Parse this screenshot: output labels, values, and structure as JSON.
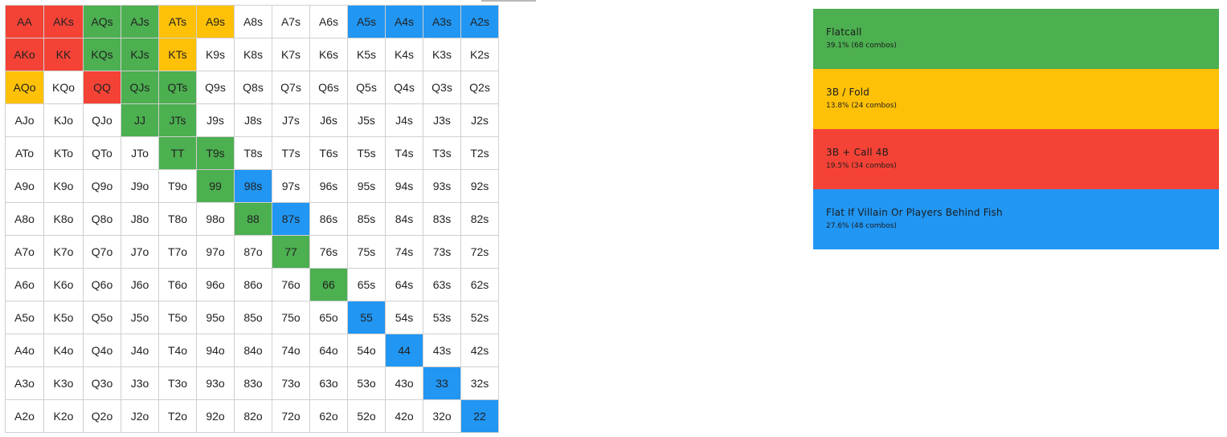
{
  "colors": {
    "flatcall": "#4caf50",
    "fold3b": "#ffc107",
    "call4b": "#f44336",
    "flatfish": "#2196f3",
    "none": "#ffffff"
  },
  "grid": {
    "rows": [
      [
        [
          "AA",
          "call4b"
        ],
        [
          "AKs",
          "call4b"
        ],
        [
          "AQs",
          "flatcall"
        ],
        [
          "AJs",
          "flatcall"
        ],
        [
          "ATs",
          "fold3b"
        ],
        [
          "A9s",
          "fold3b"
        ],
        [
          "A8s",
          "none"
        ],
        [
          "A7s",
          "none"
        ],
        [
          "A6s",
          "none"
        ],
        [
          "A5s",
          "flatfish"
        ],
        [
          "A4s",
          "flatfish"
        ],
        [
          "A3s",
          "flatfish"
        ],
        [
          "A2s",
          "flatfish"
        ]
      ],
      [
        [
          "AKo",
          "call4b"
        ],
        [
          "KK",
          "call4b"
        ],
        [
          "KQs",
          "flatcall"
        ],
        [
          "KJs",
          "flatcall"
        ],
        [
          "KTs",
          "fold3b"
        ],
        [
          "K9s",
          "none"
        ],
        [
          "K8s",
          "none"
        ],
        [
          "K7s",
          "none"
        ],
        [
          "K6s",
          "none"
        ],
        [
          "K5s",
          "none"
        ],
        [
          "K4s",
          "none"
        ],
        [
          "K3s",
          "none"
        ],
        [
          "K2s",
          "none"
        ]
      ],
      [
        [
          "AQo",
          "fold3b"
        ],
        [
          "KQo",
          "none"
        ],
        [
          "QQ",
          "call4b"
        ],
        [
          "QJs",
          "flatcall"
        ],
        [
          "QTs",
          "flatcall"
        ],
        [
          "Q9s",
          "none"
        ],
        [
          "Q8s",
          "none"
        ],
        [
          "Q7s",
          "none"
        ],
        [
          "Q6s",
          "none"
        ],
        [
          "Q5s",
          "none"
        ],
        [
          "Q4s",
          "none"
        ],
        [
          "Q3s",
          "none"
        ],
        [
          "Q2s",
          "none"
        ]
      ],
      [
        [
          "AJo",
          "none"
        ],
        [
          "KJo",
          "none"
        ],
        [
          "QJo",
          "none"
        ],
        [
          "JJ",
          "flatcall"
        ],
        [
          "JTs",
          "flatcall"
        ],
        [
          "J9s",
          "none"
        ],
        [
          "J8s",
          "none"
        ],
        [
          "J7s",
          "none"
        ],
        [
          "J6s",
          "none"
        ],
        [
          "J5s",
          "none"
        ],
        [
          "J4s",
          "none"
        ],
        [
          "J3s",
          "none"
        ],
        [
          "J2s",
          "none"
        ]
      ],
      [
        [
          "ATo",
          "none"
        ],
        [
          "KTo",
          "none"
        ],
        [
          "QTo",
          "none"
        ],
        [
          "JTo",
          "none"
        ],
        [
          "TT",
          "flatcall"
        ],
        [
          "T9s",
          "flatcall"
        ],
        [
          "T8s",
          "none"
        ],
        [
          "T7s",
          "none"
        ],
        [
          "T6s",
          "none"
        ],
        [
          "T5s",
          "none"
        ],
        [
          "T4s",
          "none"
        ],
        [
          "T3s",
          "none"
        ],
        [
          "T2s",
          "none"
        ]
      ],
      [
        [
          "A9o",
          "none"
        ],
        [
          "K9o",
          "none"
        ],
        [
          "Q9o",
          "none"
        ],
        [
          "J9o",
          "none"
        ],
        [
          "T9o",
          "none"
        ],
        [
          "99",
          "flatcall"
        ],
        [
          "98s",
          "flatfish"
        ],
        [
          "97s",
          "none"
        ],
        [
          "96s",
          "none"
        ],
        [
          "95s",
          "none"
        ],
        [
          "94s",
          "none"
        ],
        [
          "93s",
          "none"
        ],
        [
          "92s",
          "none"
        ]
      ],
      [
        [
          "A8o",
          "none"
        ],
        [
          "K8o",
          "none"
        ],
        [
          "Q8o",
          "none"
        ],
        [
          "J8o",
          "none"
        ],
        [
          "T8o",
          "none"
        ],
        [
          "98o",
          "none"
        ],
        [
          "88",
          "flatcall"
        ],
        [
          "87s",
          "flatfish"
        ],
        [
          "86s",
          "none"
        ],
        [
          "85s",
          "none"
        ],
        [
          "84s",
          "none"
        ],
        [
          "83s",
          "none"
        ],
        [
          "82s",
          "none"
        ]
      ],
      [
        [
          "A7o",
          "none"
        ],
        [
          "K7o",
          "none"
        ],
        [
          "Q7o",
          "none"
        ],
        [
          "J7o",
          "none"
        ],
        [
          "T7o",
          "none"
        ],
        [
          "97o",
          "none"
        ],
        [
          "87o",
          "none"
        ],
        [
          "77",
          "flatcall"
        ],
        [
          "76s",
          "none"
        ],
        [
          "75s",
          "none"
        ],
        [
          "74s",
          "none"
        ],
        [
          "73s",
          "none"
        ],
        [
          "72s",
          "none"
        ]
      ],
      [
        [
          "A6o",
          "none"
        ],
        [
          "K6o",
          "none"
        ],
        [
          "Q6o",
          "none"
        ],
        [
          "J6o",
          "none"
        ],
        [
          "T6o",
          "none"
        ],
        [
          "96o",
          "none"
        ],
        [
          "86o",
          "none"
        ],
        [
          "76o",
          "none"
        ],
        [
          "66",
          "flatcall"
        ],
        [
          "65s",
          "none"
        ],
        [
          "64s",
          "none"
        ],
        [
          "63s",
          "none"
        ],
        [
          "62s",
          "none"
        ]
      ],
      [
        [
          "A5o",
          "none"
        ],
        [
          "K5o",
          "none"
        ],
        [
          "Q5o",
          "none"
        ],
        [
          "J5o",
          "none"
        ],
        [
          "T5o",
          "none"
        ],
        [
          "95o",
          "none"
        ],
        [
          "85o",
          "none"
        ],
        [
          "75o",
          "none"
        ],
        [
          "65o",
          "none"
        ],
        [
          "55",
          "flatfish"
        ],
        [
          "54s",
          "none"
        ],
        [
          "53s",
          "none"
        ],
        [
          "52s",
          "none"
        ]
      ],
      [
        [
          "A4o",
          "none"
        ],
        [
          "K4o",
          "none"
        ],
        [
          "Q4o",
          "none"
        ],
        [
          "J4o",
          "none"
        ],
        [
          "T4o",
          "none"
        ],
        [
          "94o",
          "none"
        ],
        [
          "84o",
          "none"
        ],
        [
          "74o",
          "none"
        ],
        [
          "64o",
          "none"
        ],
        [
          "54o",
          "none"
        ],
        [
          "44",
          "flatfish"
        ],
        [
          "43s",
          "none"
        ],
        [
          "42s",
          "none"
        ]
      ],
      [
        [
          "A3o",
          "none"
        ],
        [
          "K3o",
          "none"
        ],
        [
          "Q3o",
          "none"
        ],
        [
          "J3o",
          "none"
        ],
        [
          "T3o",
          "none"
        ],
        [
          "93o",
          "none"
        ],
        [
          "83o",
          "none"
        ],
        [
          "73o",
          "none"
        ],
        [
          "63o",
          "none"
        ],
        [
          "53o",
          "none"
        ],
        [
          "43o",
          "none"
        ],
        [
          "33",
          "flatfish"
        ],
        [
          "32s",
          "none"
        ]
      ],
      [
        [
          "A2o",
          "none"
        ],
        [
          "K2o",
          "none"
        ],
        [
          "Q2o",
          "none"
        ],
        [
          "J2o",
          "none"
        ],
        [
          "T2o",
          "none"
        ],
        [
          "92o",
          "none"
        ],
        [
          "82o",
          "none"
        ],
        [
          "72o",
          "none"
        ],
        [
          "62o",
          "none"
        ],
        [
          "52o",
          "none"
        ],
        [
          "42o",
          "none"
        ],
        [
          "32o",
          "none"
        ],
        [
          "22",
          "flatfish"
        ]
      ]
    ]
  },
  "legend": {
    "items": [
      {
        "key": "flatcall",
        "name": "Flatcall",
        "stats": "39.1% (68 combos)"
      },
      {
        "key": "fold3b",
        "name": "3B / Fold",
        "stats": "13.8% (24 combos)"
      },
      {
        "key": "call4b",
        "name": "3B + Call 4B",
        "stats": "19.5% (34 combos)"
      },
      {
        "key": "flatfish",
        "name": "Flat If Villain Or Players Behind Fish",
        "stats": "27.6% (48 combos)"
      }
    ]
  }
}
